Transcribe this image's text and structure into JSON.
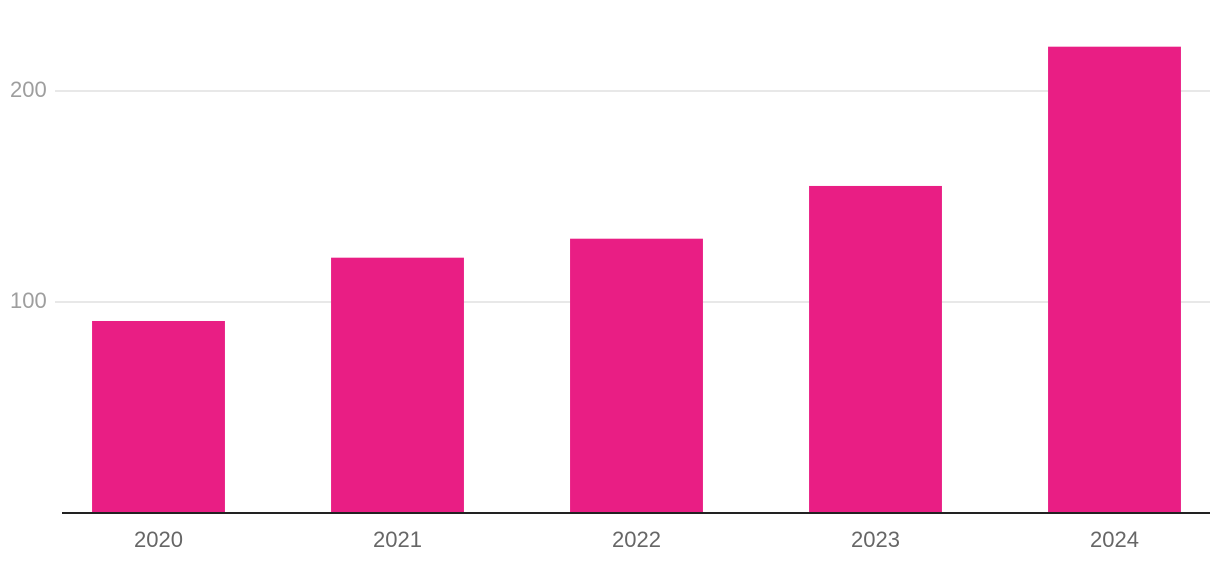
{
  "chart_data": {
    "type": "bar",
    "categories": [
      "2020",
      "2021",
      "2022",
      "2023",
      "2024"
    ],
    "values": [
      91,
      121,
      130,
      155,
      221
    ],
    "color": "#e91e84",
    "ylim": [
      0,
      240
    ],
    "yticks": [
      100,
      200
    ],
    "grid": true
  }
}
